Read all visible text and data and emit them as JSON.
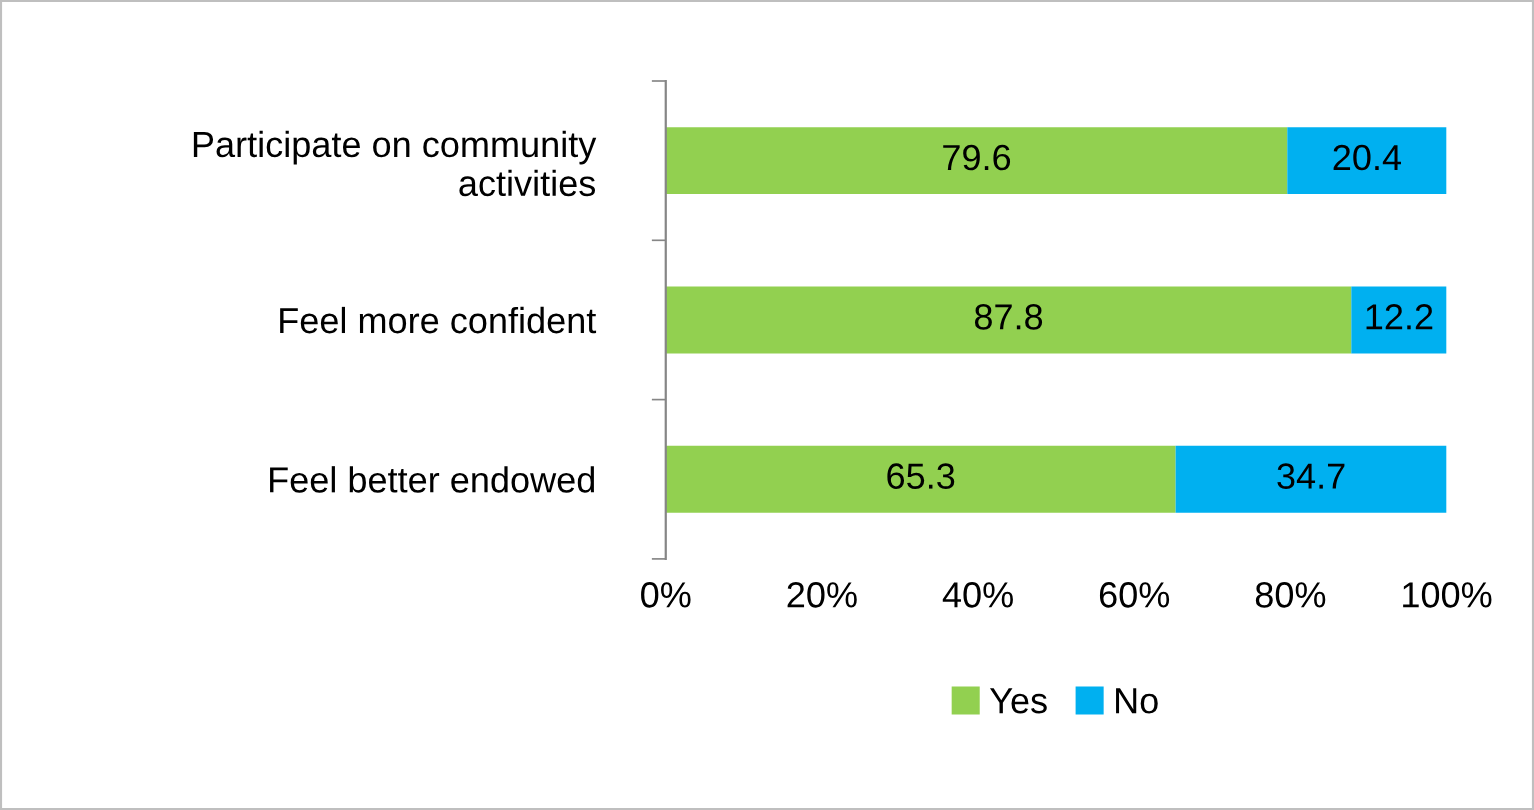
{
  "chart_data": {
    "type": "bar",
    "orientation": "horizontal",
    "stacked": true,
    "categories": [
      "Participate on community activities",
      "Feel more confident",
      "Feel better endowed"
    ],
    "series": [
      {
        "name": "Yes",
        "color": "#92d050",
        "values": [
          79.6,
          87.8,
          65.3
        ]
      },
      {
        "name": "No",
        "color": "#00b0f0",
        "values": [
          20.4,
          12.2,
          34.7
        ]
      }
    ],
    "xlim": [
      0,
      100
    ],
    "xticks": [
      {
        "value": 0,
        "label": "0%"
      },
      {
        "value": 20,
        "label": "20%"
      },
      {
        "value": 40,
        "label": "40%"
      },
      {
        "value": 60,
        "label": "60%"
      },
      {
        "value": 80,
        "label": "80%"
      },
      {
        "value": 100,
        "label": "100%"
      }
    ],
    "data_labels": true,
    "legend": "bottom",
    "grid": false
  }
}
